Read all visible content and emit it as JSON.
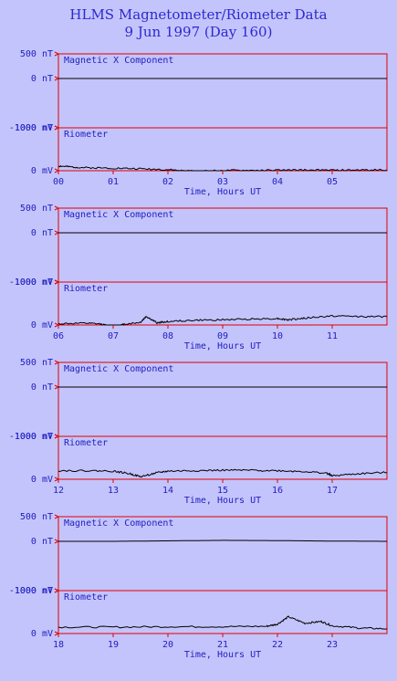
{
  "header": {
    "title": "HLMS Magnetometer/Riometer Data",
    "subtitle": "9 Jun 1997 (Day 160)"
  },
  "colors": {
    "background": "#c4c4fc",
    "frame": "#e00000",
    "trace": "#000000",
    "text": "#2020c0"
  },
  "chart_data": [
    {
      "type": "line",
      "xlabel": "Time, Hours UT",
      "x_ticks": [
        "00",
        "01",
        "02",
        "03",
        "04",
        "05"
      ],
      "xlim": [
        0,
        6
      ],
      "panels": [
        {
          "name": "Magnetic X Component",
          "ylim": [
            -1000,
            500
          ],
          "y_ticks": [
            {
              "v": 500,
              "label": "500 nT"
            },
            {
              "v": 0,
              "label": "0 nT"
            },
            {
              "v": -1000,
              "label": "-1000 nT"
            }
          ],
          "series": [
            {
              "x": [
                0,
                1,
                2,
                3,
                4,
                5,
                6
              ],
              "y": [
                0,
                0,
                0,
                0,
                0,
                0,
                0
              ]
            }
          ]
        },
        {
          "name": "Riometer",
          "ylim": [
            0,
            1000
          ],
          "y_ticks": [
            {
              "v": 1000,
              "label": "1000 mV"
            },
            {
              "v": 0,
              "label": "0 mV"
            }
          ],
          "series": [
            {
              "x": [
                0,
                0.2,
                0.5,
                1,
                1.5,
                2,
                2.3,
                2.6,
                3,
                3.5,
                4,
                4.5,
                5,
                5.5,
                6
              ],
              "y": [
                110,
                90,
                70,
                60,
                45,
                25,
                -5,
                -10,
                5,
                5,
                10,
                15,
                10,
                15,
                20
              ]
            }
          ]
        }
      ]
    },
    {
      "type": "line",
      "xlabel": "Time, Hours UT",
      "x_ticks": [
        "06",
        "07",
        "08",
        "09",
        "10",
        "11"
      ],
      "xlim": [
        6,
        12
      ],
      "panels": [
        {
          "name": "Magnetic X Component",
          "ylim": [
            -1000,
            500
          ],
          "y_ticks": [
            {
              "v": 500,
              "label": "500 nT"
            },
            {
              "v": 0,
              "label": "0 nT"
            },
            {
              "v": -1000,
              "label": "-1000 nT"
            }
          ],
          "series": [
            {
              "x": [
                6,
                7,
                8,
                9,
                10,
                11,
                12
              ],
              "y": [
                0,
                0,
                0,
                0,
                0,
                0,
                0
              ]
            }
          ]
        },
        {
          "name": "Riometer",
          "ylim": [
            0,
            1000
          ],
          "y_ticks": [
            {
              "v": 1000,
              "label": "1000 mV"
            },
            {
              "v": 0,
              "label": "0 mV"
            }
          ],
          "series": [
            {
              "x": [
                6,
                6.5,
                6.8,
                7,
                7.2,
                7.5,
                7.6,
                7.8,
                8,
                8.5,
                9,
                9.5,
                10,
                10.2,
                10.5,
                11,
                11.5,
                12
              ],
              "y": [
                30,
                40,
                20,
                -70,
                20,
                60,
                200,
                50,
                80,
                110,
                120,
                140,
                150,
                120,
                160,
                210,
                200,
                190
              ]
            }
          ]
        }
      ]
    },
    {
      "type": "line",
      "xlabel": "Time, Hours UT",
      "x_ticks": [
        "12",
        "13",
        "14",
        "15",
        "16",
        "17"
      ],
      "xlim": [
        12,
        18
      ],
      "panels": [
        {
          "name": "Magnetic X Component",
          "ylim": [
            -1000,
            500
          ],
          "y_ticks": [
            {
              "v": 500,
              "label": "500 nT"
            },
            {
              "v": 0,
              "label": "0 nT"
            },
            {
              "v": -1000,
              "label": "-1000 nT"
            }
          ],
          "series": [
            {
              "x": [
                12,
                13,
                14,
                15,
                16,
                17,
                18
              ],
              "y": [
                0,
                0,
                0,
                0,
                0,
                0,
                0
              ]
            }
          ]
        },
        {
          "name": "Riometer",
          "ylim": [
            0,
            1000
          ],
          "y_ticks": [
            {
              "v": 1000,
              "label": "1000 mV"
            },
            {
              "v": 0,
              "label": "0 mV"
            }
          ],
          "series": [
            {
              "x": [
                12,
                12.5,
                13,
                13.3,
                13.5,
                13.8,
                14,
                14.5,
                15,
                15.5,
                16,
                16.5,
                16.9,
                17,
                17.5,
                18
              ],
              "y": [
                200,
                200,
                190,
                130,
                60,
                150,
                190,
                200,
                210,
                210,
                200,
                180,
                140,
                80,
                130,
                160
              ]
            }
          ]
        }
      ]
    },
    {
      "type": "line",
      "xlabel": "Time, Hours UT",
      "x_ticks": [
        "18",
        "19",
        "20",
        "21",
        "22",
        "23"
      ],
      "xlim": [
        18,
        24
      ],
      "panels": [
        {
          "name": "Magnetic X Component",
          "ylim": [
            -1000,
            500
          ],
          "y_ticks": [
            {
              "v": 500,
              "label": "500 nT"
            },
            {
              "v": 0,
              "label": "0 nT"
            },
            {
              "v": -1000,
              "label": "-1000 nT"
            }
          ],
          "series": [
            {
              "x": [
                18,
                19,
                20,
                21,
                22,
                23,
                24
              ],
              "y": [
                0,
                0,
                10,
                20,
                15,
                5,
                0
              ]
            }
          ]
        },
        {
          "name": "Riometer",
          "ylim": [
            0,
            1000
          ],
          "y_ticks": [
            {
              "v": 1000,
              "label": "1000 mV"
            },
            {
              "v": 0,
              "label": "0 mV"
            }
          ],
          "series": [
            {
              "x": [
                18,
                19,
                20,
                21,
                21.8,
                22,
                22.2,
                22.5,
                22.8,
                23,
                23.5,
                24
              ],
              "y": [
                150,
                150,
                160,
                160,
                170,
                220,
                390,
                240,
                280,
                180,
                130,
                110
              ]
            }
          ]
        }
      ]
    }
  ]
}
